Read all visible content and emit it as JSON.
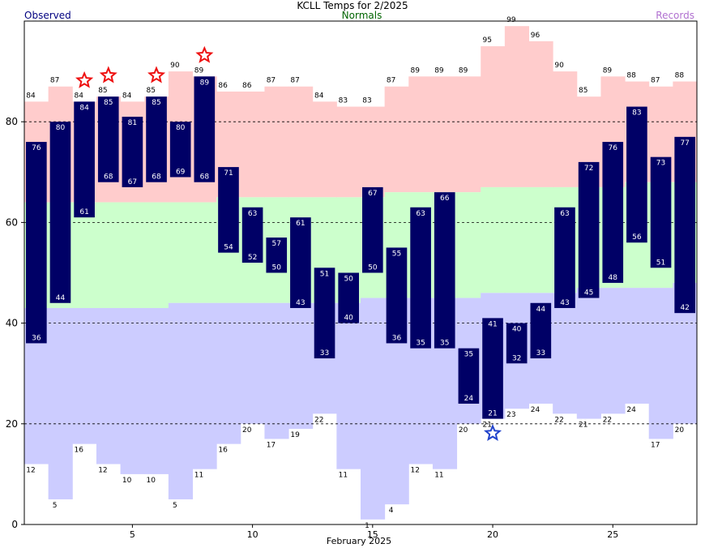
{
  "header": {
    "title": "KCLL Temps for 2/2025",
    "legend_observed": "Observed",
    "legend_normals": "Normals",
    "legend_records": "Records"
  },
  "colors": {
    "observed_bar": "#000066",
    "record_band_high": "#ffcccc",
    "normal_band": "#ccffcc",
    "record_band_low": "#ccccff",
    "record_star_high": "#ee1111",
    "record_star_low": "#2244cc",
    "legend_observed": "#000080",
    "legend_normals": "#006400",
    "legend_records": "#b070d0"
  },
  "chart_data": {
    "type": "bar",
    "title": "KCLL Temps for 2/2025",
    "xlabel": "February 2025",
    "ylabel": "",
    "ylim": [
      0,
      100
    ],
    "yticks": [
      0,
      20,
      40,
      60,
      80
    ],
    "xticks": [
      5,
      10,
      15,
      20,
      25
    ],
    "grid": "dashed horizontal at 20, 40, 60, 80",
    "days": [
      1,
      2,
      3,
      4,
      5,
      6,
      7,
      8,
      9,
      10,
      11,
      12,
      13,
      14,
      15,
      16,
      17,
      18,
      19,
      20,
      21,
      22,
      23,
      24,
      25,
      26,
      27,
      28
    ],
    "observed_high": [
      76,
      80,
      84,
      85,
      81,
      85,
      80,
      89,
      71,
      63,
      57,
      61,
      51,
      50,
      67,
      55,
      63,
      66,
      35,
      41,
      40,
      44,
      63,
      72,
      76,
      83,
      73,
      77
    ],
    "observed_low": [
      36,
      44,
      61,
      68,
      67,
      68,
      69,
      68,
      54,
      52,
      50,
      43,
      33,
      40,
      50,
      36,
      35,
      35,
      24,
      21,
      32,
      33,
      43,
      45,
      48,
      56,
      51,
      42
    ],
    "normal_high": [
      64,
      64,
      64,
      64,
      64,
      64,
      64,
      64,
      65,
      65,
      65,
      65,
      65,
      65,
      65,
      66,
      66,
      66,
      66,
      67,
      67,
      67,
      67,
      67,
      67,
      68,
      68,
      68
    ],
    "normal_low": [
      43,
      43,
      43,
      43,
      43,
      43,
      44,
      44,
      44,
      44,
      44,
      44,
      44,
      44,
      45,
      45,
      45,
      45,
      45,
      46,
      46,
      46,
      46,
      47,
      47,
      47,
      47,
      48
    ],
    "record_high": [
      84,
      87,
      84,
      85,
      84,
      85,
      90,
      89,
      86,
      86,
      87,
      87,
      84,
      83,
      83,
      87,
      89,
      89,
      89,
      95,
      99,
      96,
      90,
      85,
      89,
      88,
      87,
      88
    ],
    "record_low": [
      12,
      5,
      16,
      12,
      10,
      10,
      5,
      11,
      16,
      20,
      17,
      19,
      22,
      11,
      1,
      4,
      12,
      11,
      20,
      21,
      23,
      24,
      22,
      21,
      22,
      24,
      17,
      20
    ],
    "record_high_set_days": [
      3,
      4,
      6,
      8
    ],
    "record_low_set_days": [
      20
    ]
  }
}
